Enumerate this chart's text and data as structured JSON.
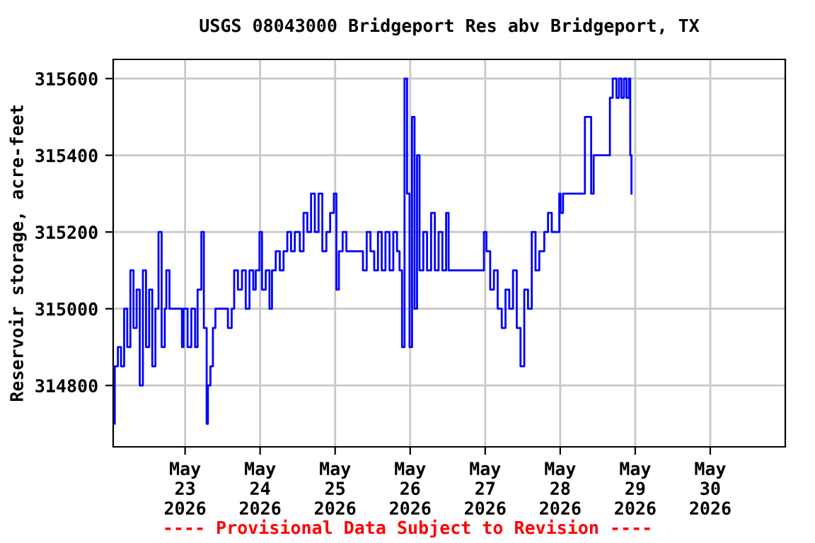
{
  "chart_data": {
    "type": "step",
    "title": "USGS 08043000 Bridgeport Res abv Bridgeport, TX",
    "ylabel": "Reservoir storage, acre-feet",
    "annotations": [
      "---- Provisional Data Subject to Revision ----"
    ],
    "xlim": [
      "2026-05-22T01:00",
      "2026-05-31T00:00"
    ],
    "ylim": [
      314640,
      315650
    ],
    "xticks": [
      {
        "value": "2026-05-23",
        "label": "May\n23\n2026"
      },
      {
        "value": "2026-05-24",
        "label": "May\n24\n2026"
      },
      {
        "value": "2026-05-25",
        "label": "May\n25\n2026"
      },
      {
        "value": "2026-05-26",
        "label": "May\n26\n2026"
      },
      {
        "value": "2026-05-27",
        "label": "May\n27\n2026"
      },
      {
        "value": "2026-05-28",
        "label": "May\n28\n2026"
      },
      {
        "value": "2026-05-29",
        "label": "May\n29\n2026"
      },
      {
        "value": "2026-05-30",
        "label": "May\n30\n2026"
      }
    ],
    "yticks": [
      314800,
      315000,
      315200,
      315400,
      315600
    ],
    "grid": true,
    "line_style": "solid",
    "series": [
      {
        "color": "#0000ff",
        "x": [
          "2026-05-22T01:00",
          "2026-05-22T01:30",
          "2026-05-22T02:30",
          "2026-05-22T03:30",
          "2026-05-22T04:30",
          "2026-05-22T05:30",
          "2026-05-22T06:30",
          "2026-05-22T07:30",
          "2026-05-22T08:30",
          "2026-05-22T09:30",
          "2026-05-22T10:30",
          "2026-05-22T11:30",
          "2026-05-22T12:30",
          "2026-05-22T13:30",
          "2026-05-22T14:30",
          "2026-05-22T15:30",
          "2026-05-22T16:30",
          "2026-05-22T17:30",
          "2026-05-22T18:00",
          "2026-05-22T19:00",
          "2026-05-22T23:00",
          "2026-05-22T23:30",
          "2026-05-23T00:48",
          "2026-05-23T02:00",
          "2026-05-23T03:12",
          "2026-05-23T04:00",
          "2026-05-23T05:12",
          "2026-05-23T06:00",
          "2026-05-23T06:54",
          "2026-05-23T07:18",
          "2026-05-23T08:06",
          "2026-05-23T08:54",
          "2026-05-23T09:42",
          "2026-05-23T12:54",
          "2026-05-23T13:42",
          "2026-05-23T14:54",
          "2026-05-23T15:42",
          "2026-05-23T16:54",
          "2026-05-23T18:12",
          "2026-05-23T19:24",
          "2026-05-23T20:36",
          "2026-05-23T21:48",
          "2026-05-23T22:36",
          "2026-05-23T23:48",
          "2026-05-24T00:36",
          "2026-05-24T01:48",
          "2026-05-24T03:00",
          "2026-05-24T03:48",
          "2026-05-24T05:00",
          "2026-05-24T06:18",
          "2026-05-24T07:30",
          "2026-05-24T08:42",
          "2026-05-24T09:54",
          "2026-05-24T11:06",
          "2026-05-24T12:42",
          "2026-05-24T13:54",
          "2026-05-24T15:06",
          "2026-05-24T16:18",
          "2026-05-24T17:30",
          "2026-05-24T18:42",
          "2026-05-24T19:54",
          "2026-05-24T21:12",
          "2026-05-24T22:24",
          "2026-05-24T23:36",
          "2026-05-25T00:24",
          "2026-05-25T01:12",
          "2026-05-25T02:24",
          "2026-05-25T03:36",
          "2026-05-25T07:42",
          "2026-05-25T08:54",
          "2026-05-25T10:06",
          "2026-05-25T11:18",
          "2026-05-25T12:30",
          "2026-05-25T13:42",
          "2026-05-25T14:54",
          "2026-05-25T16:06",
          "2026-05-25T17:24",
          "2026-05-25T18:36",
          "2026-05-25T19:48",
          "2026-05-25T20:36",
          "2026-05-25T21:24",
          "2026-05-25T22:12",
          "2026-05-25T23:00",
          "2026-05-25T23:48",
          "2026-05-26T00:36",
          "2026-05-26T01:24",
          "2026-05-26T02:12",
          "2026-05-26T03:00",
          "2026-05-26T04:12",
          "2026-05-26T05:24",
          "2026-05-26T06:42",
          "2026-05-26T07:54",
          "2026-05-26T09:06",
          "2026-05-26T10:18",
          "2026-05-26T11:30",
          "2026-05-26T12:18",
          "2026-05-26T23:36",
          "2026-05-27T00:24",
          "2026-05-27T01:36",
          "2026-05-27T02:48",
          "2026-05-27T04:00",
          "2026-05-27T05:18",
          "2026-05-27T06:30",
          "2026-05-27T07:42",
          "2026-05-27T08:54",
          "2026-05-27T10:06",
          "2026-05-27T11:18",
          "2026-05-27T12:30",
          "2026-05-27T13:42",
          "2026-05-27T14:54",
          "2026-05-27T16:06",
          "2026-05-27T17:18",
          "2026-05-27T18:54",
          "2026-05-27T20:06",
          "2026-05-27T21:18",
          "2026-05-27T23:42",
          "2026-05-28T00:06",
          "2026-05-28T00:54",
          "2026-05-28T07:54",
          "2026-05-28T09:54",
          "2026-05-28T10:42",
          "2026-05-28T15:54",
          "2026-05-28T16:48",
          "2026-05-28T18:00",
          "2026-05-28T18:48",
          "2026-05-28T19:36",
          "2026-05-28T20:24",
          "2026-05-28T21:12",
          "2026-05-28T22:00",
          "2026-05-28T22:24",
          "2026-05-28T22:48"
        ],
        "values": [
          314700,
          314850,
          314900,
          314850,
          315000,
          314900,
          315100,
          314950,
          315050,
          314800,
          315100,
          314900,
          315050,
          314850,
          315000,
          315200,
          314900,
          315000,
          315100,
          315000,
          314900,
          315000,
          314900,
          315000,
          314900,
          315050,
          315200,
          314950,
          314700,
          314800,
          314850,
          314950,
          315000,
          315000,
          314950,
          315000,
          315100,
          315050,
          315100,
          315000,
          315100,
          315050,
          315100,
          315200,
          315050,
          315100,
          315000,
          315100,
          315150,
          315100,
          315150,
          315200,
          315150,
          315200,
          315150,
          315250,
          315200,
          315300,
          315200,
          315300,
          315150,
          315200,
          315250,
          315300,
          315050,
          315150,
          315200,
          315150,
          315150,
          315100,
          315200,
          315150,
          315100,
          315200,
          315100,
          315200,
          315100,
          315200,
          315150,
          315100,
          314900,
          315600,
          315300,
          314900,
          315500,
          315000,
          315400,
          315100,
          315200,
          315100,
          315250,
          315100,
          315200,
          315100,
          315250,
          315100,
          315200,
          315150,
          315050,
          315100,
          315000,
          314950,
          315050,
          315000,
          315100,
          314950,
          314850,
          315050,
          315000,
          315200,
          315100,
          315150,
          315200,
          315250,
          315200,
          315300,
          315250,
          315300,
          315500,
          315300,
          315400,
          315550,
          315600,
          315550,
          315600,
          315550,
          315600,
          315550,
          315600,
          315400,
          315300
        ]
      }
    ]
  }
}
